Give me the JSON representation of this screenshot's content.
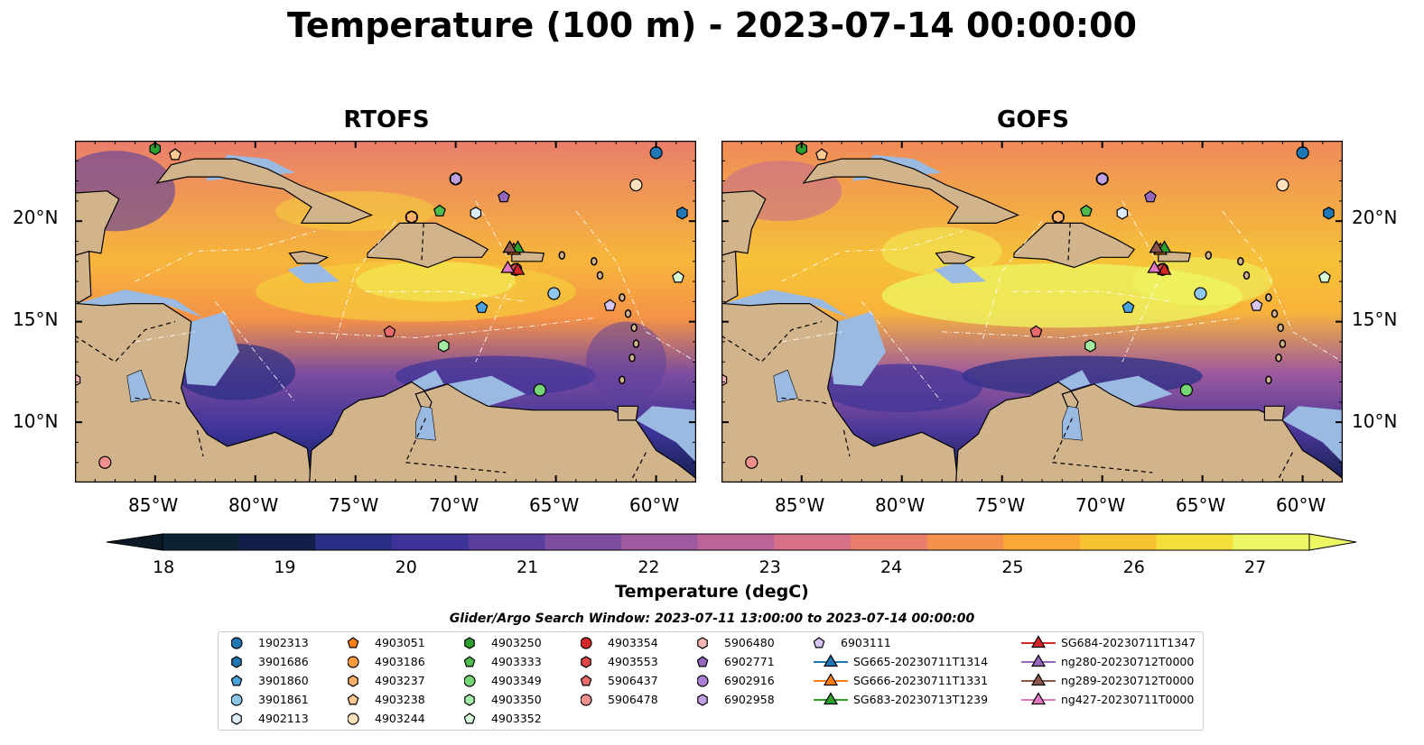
{
  "title": "Temperature (100 m) - 2023-07-14 00:00:00",
  "panels": [
    {
      "title": "RTOFS"
    },
    {
      "title": "GOFS"
    }
  ],
  "lat_ticks": [
    "20°N",
    "15°N",
    "10°N"
  ],
  "lon_ticks": [
    "85°W",
    "80°W",
    "75°W",
    "70°W",
    "65°W",
    "60°W"
  ],
  "colorbar": {
    "label": "Temperature (degC)",
    "ticks": [
      "18",
      "19",
      "20",
      "21",
      "22",
      "23",
      "24",
      "25",
      "26",
      "27"
    ],
    "colors": [
      "#0b2233",
      "#141e4b",
      "#2a2f85",
      "#3d3399",
      "#5a3e9e",
      "#7d4d9f",
      "#9d5a9e",
      "#bd6598",
      "#d77188",
      "#e97e6c",
      "#f4914c",
      "#f9a838",
      "#f8c232",
      "#f4de3c",
      "#ecf763"
    ]
  },
  "search_window": "Glider/Argo Search Window: 2023-07-11 13:00:00 to 2023-07-14 00:00:00",
  "chart_data": {
    "type": "heatmap",
    "title": "Temperature (100 m) - 2023-07-14 00:00:00",
    "xlabel": "",
    "ylabel": "",
    "xlim": [
      -89,
      -58
    ],
    "ylim": [
      7,
      24
    ],
    "value_range": [
      18,
      27
    ],
    "unit": "degC",
    "panels": [
      "RTOFS",
      "GOFS"
    ],
    "markers": [
      {
        "name": "1902313",
        "lon": -60.0,
        "lat": 23.4,
        "shape": "circle",
        "color": "#1f77b4"
      },
      {
        "name": "3901686",
        "lon": -58.7,
        "lat": 20.4,
        "shape": "hexagon",
        "color": "#1f77b4"
      },
      {
        "name": "3901860",
        "lon": -68.7,
        "lat": 15.7,
        "shape": "pentagon",
        "color": "#4aa3df"
      },
      {
        "name": "3901861",
        "lon": -65.1,
        "lat": 16.4,
        "shape": "circle",
        "color": "#8fc6ec"
      },
      {
        "name": "4902113",
        "lon": -69.0,
        "lat": 20.4,
        "shape": "hexagon",
        "color": "#dceefc"
      },
      {
        "name": "4903051",
        "lon": -72.2,
        "lat": 20.2,
        "shape": "pentagon",
        "color": "#ff7f0e"
      },
      {
        "name": "4903186",
        "lon": -72.2,
        "lat": 20.2,
        "shape": "circle",
        "color": "#ff9a40"
      },
      {
        "name": "4903237",
        "lon": -72.2,
        "lat": 20.2,
        "shape": "hexagon",
        "color": "#ffb267"
      },
      {
        "name": "4903238",
        "lon": -84.0,
        "lat": 23.3,
        "shape": "pentagon",
        "color": "#ffc98f"
      },
      {
        "name": "4903244",
        "lon": -61.0,
        "lat": 21.8,
        "shape": "circle",
        "color": "#ffe0bd"
      },
      {
        "name": "4903250",
        "lon": -85.0,
        "lat": 23.6,
        "shape": "hexagon",
        "color": "#2ca02c"
      },
      {
        "name": "4903333",
        "lon": -70.8,
        "lat": 20.5,
        "shape": "pentagon",
        "color": "#4dbb4d"
      },
      {
        "name": "4903349",
        "lon": -65.8,
        "lat": 11.6,
        "shape": "circle",
        "color": "#76d676"
      },
      {
        "name": "4903350",
        "lon": -70.6,
        "lat": 13.8,
        "shape": "hexagon",
        "color": "#a4eba4"
      },
      {
        "name": "4903352",
        "lon": -58.9,
        "lat": 17.2,
        "shape": "pentagon",
        "color": "#d6fbd6"
      },
      {
        "name": "4903354",
        "lon": -67.0,
        "lat": 17.6,
        "shape": "circle",
        "color": "#d62728"
      },
      {
        "name": "4903553",
        "lon": -67.0,
        "lat": 17.6,
        "shape": "hexagon",
        "color": "#e04848"
      },
      {
        "name": "5906437",
        "lon": -73.3,
        "lat": 14.5,
        "shape": "pentagon",
        "color": "#ea6b6b"
      },
      {
        "name": "5906478",
        "lon": -87.5,
        "lat": 8.0,
        "shape": "circle",
        "color": "#f29090"
      },
      {
        "name": "5906480",
        "lon": -89.0,
        "lat": 12.1,
        "shape": "hexagon",
        "color": "#f8b6b6"
      },
      {
        "name": "6902771",
        "lon": -67.6,
        "lat": 21.2,
        "shape": "pentagon",
        "color": "#9467bd"
      },
      {
        "name": "6902916",
        "lon": -70.0,
        "lat": 22.1,
        "shape": "circle",
        "color": "#a97fd1"
      },
      {
        "name": "6902958",
        "lon": -70.0,
        "lat": 22.1,
        "shape": "hexagon",
        "color": "#bfa0e0"
      },
      {
        "name": "6903111",
        "lon": -62.3,
        "lat": 15.8,
        "shape": "pentagon",
        "color": "#d8c4f0"
      },
      {
        "name": "SG665-20230711T1314",
        "lon": -67.1,
        "lat": 18.6,
        "shape": "triangle",
        "color": "#1f77b4"
      },
      {
        "name": "SG666-20230711T1331",
        "lon": -67.1,
        "lat": 18.6,
        "shape": "triangle",
        "color": "#ff7f0e"
      },
      {
        "name": "SG683-20230713T1239",
        "lon": -66.9,
        "lat": 18.7,
        "shape": "triangle",
        "color": "#2ca02c"
      },
      {
        "name": "SG684-20230711T1347",
        "lon": -66.9,
        "lat": 17.6,
        "shape": "triangle",
        "color": "#d62728"
      },
      {
        "name": "ng280-20230712T0000",
        "lon": -67.3,
        "lat": 18.7,
        "shape": "triangle",
        "color": "#9467bd"
      },
      {
        "name": "ng289-20230712T0000",
        "lon": -67.3,
        "lat": 18.7,
        "shape": "triangle",
        "color": "#8c564b"
      },
      {
        "name": "ng427-20230711T0000",
        "lon": -67.4,
        "lat": 17.7,
        "shape": "triangle",
        "color": "#e377c2"
      }
    ]
  }
}
